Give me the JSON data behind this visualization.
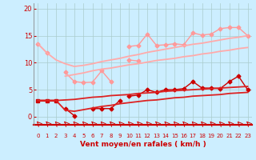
{
  "x": [
    0,
    1,
    2,
    3,
    4,
    5,
    6,
    7,
    8,
    9,
    10,
    11,
    12,
    13,
    14,
    15,
    16,
    17,
    18,
    19,
    20,
    21,
    22,
    23
  ],
  "series": [
    {
      "name": "light_scattered1",
      "y": [
        13.5,
        11.8,
        null,
        null,
        null,
        null,
        null,
        null,
        null,
        null,
        null,
        null,
        null,
        null,
        null,
        null,
        null,
        null,
        null,
        null,
        null,
        null,
        null,
        null
      ],
      "color": "#ff9999",
      "lw": 1.0,
      "marker": "D",
      "ms": 2.5
    },
    {
      "name": "light_scattered2",
      "y": [
        null,
        null,
        null,
        8.2,
        6.5,
        6.3,
        6.4,
        8.5,
        6.5,
        null,
        13.0,
        13.2,
        15.3,
        13.2,
        13.3,
        13.5,
        13.3,
        15.5,
        15.1,
        15.3,
        16.3,
        16.5,
        16.5,
        15.0
      ],
      "color": "#ff9999",
      "lw": 1.0,
      "marker": "D",
      "ms": 2.5
    },
    {
      "name": "light_scattered3",
      "y": [
        null,
        null,
        null,
        null,
        null,
        null,
        null,
        null,
        null,
        null,
        10.5,
        10.3,
        null,
        null,
        null,
        null,
        null,
        null,
        null,
        null,
        null,
        null,
        null,
        null
      ],
      "color": "#ff9999",
      "lw": 1.0,
      "marker": "D",
      "ms": 2.5
    },
    {
      "name": "trend_light_upper",
      "y": [
        13.5,
        11.8,
        10.5,
        9.8,
        9.3,
        9.5,
        9.8,
        10.2,
        10.5,
        10.8,
        11.2,
        11.5,
        11.9,
        12.2,
        12.5,
        12.8,
        13.1,
        13.4,
        13.6,
        13.9,
        14.2,
        14.5,
        14.7,
        15.0
      ],
      "color": "#ffaaaa",
      "lw": 1.3,
      "marker": null,
      "ms": 0
    },
    {
      "name": "trend_light_lower",
      "y": [
        null,
        null,
        null,
        7.5,
        7.8,
        8.1,
        8.5,
        8.8,
        9.0,
        9.3,
        9.6,
        9.8,
        10.1,
        10.4,
        10.6,
        10.8,
        11.1,
        11.3,
        11.6,
        11.8,
        12.1,
        12.3,
        12.6,
        12.8
      ],
      "color": "#ffaaaa",
      "lw": 1.3,
      "marker": null,
      "ms": 0
    },
    {
      "name": "red_flat",
      "y": [
        3.0,
        3.0,
        3.0,
        null,
        null,
        null,
        null,
        null,
        null,
        null,
        null,
        null,
        null,
        null,
        null,
        null,
        null,
        null,
        null,
        null,
        null,
        null,
        null,
        null
      ],
      "color": "#cc0000",
      "lw": 1.5,
      "marker": "s",
      "ms": 2.5
    },
    {
      "name": "red_lower_scattered",
      "y": [
        null,
        null,
        null,
        1.5,
        0.2,
        null,
        1.5,
        1.5,
        1.5,
        3.0,
        null,
        null,
        null,
        null,
        null,
        null,
        null,
        null,
        null,
        null,
        null,
        null,
        null,
        null
      ],
      "color": "#cc0000",
      "lw": 1.0,
      "marker": "D",
      "ms": 2.5
    },
    {
      "name": "red_rise_scattered",
      "y": [
        null,
        null,
        null,
        null,
        null,
        null,
        null,
        null,
        null,
        null,
        3.8,
        4.0,
        5.0,
        4.5,
        5.0,
        5.0,
        5.2,
        6.5,
        5.3,
        5.3,
        5.2,
        6.5,
        7.5,
        5.0
      ],
      "color": "#cc0000",
      "lw": 1.0,
      "marker": "D",
      "ms": 2.5
    },
    {
      "name": "trend_red_upper",
      "y": [
        3.0,
        3.0,
        3.0,
        3.1,
        3.2,
        3.4,
        3.6,
        3.7,
        3.9,
        4.0,
        4.1,
        4.3,
        4.4,
        4.5,
        4.7,
        4.8,
        4.9,
        5.0,
        5.1,
        5.2,
        5.3,
        5.4,
        5.5,
        5.6
      ],
      "color": "#dd2222",
      "lw": 1.3,
      "marker": null,
      "ms": 0
    },
    {
      "name": "trend_red_lower",
      "y": [
        3.0,
        3.0,
        3.0,
        1.2,
        1.0,
        1.3,
        1.6,
        1.9,
        2.1,
        2.4,
        2.6,
        2.8,
        3.0,
        3.1,
        3.3,
        3.5,
        3.6,
        3.8,
        3.9,
        4.0,
        4.1,
        4.3,
        4.4,
        4.5
      ],
      "color": "#dd2222",
      "lw": 1.3,
      "marker": null,
      "ms": 0
    }
  ],
  "xlabel": "Vent moyen/en rafales ( km/h )",
  "xlim": [
    -0.5,
    23.5
  ],
  "ylim": [
    -1.5,
    21
  ],
  "yticks": [
    0,
    5,
    10,
    15,
    20
  ],
  "xticks": [
    0,
    1,
    2,
    3,
    4,
    5,
    6,
    7,
    8,
    9,
    10,
    11,
    12,
    13,
    14,
    15,
    16,
    17,
    18,
    19,
    20,
    21,
    22,
    23
  ],
  "bg_color": "#cceeff",
  "grid_color": "#aacccc",
  "tick_color": "#cc0000",
  "label_color": "#cc0000"
}
